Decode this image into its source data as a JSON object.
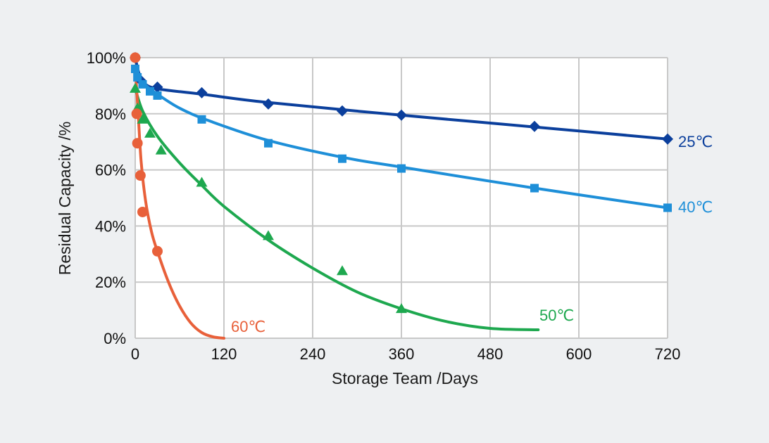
{
  "chart_data": {
    "type": "scatter",
    "xlabel": "Storage Team /Days",
    "ylabel": "Residual Capacity /%",
    "xlim": [
      0,
      720
    ],
    "ylim": [
      0,
      100
    ],
    "x_ticks": [
      "0",
      "120",
      "240",
      "360",
      "480",
      "600",
      "720"
    ],
    "y_ticks": [
      "0%",
      "20%",
      "40%",
      "60%",
      "80%",
      "100%"
    ],
    "grid": true,
    "series": [
      {
        "name": "25℃",
        "color": "#0b3f9c",
        "marker": "diamond",
        "points": [
          [
            0,
            100
          ],
          [
            7,
            92
          ],
          [
            30,
            89.5
          ],
          [
            90,
            87.5
          ],
          [
            180,
            83.5
          ],
          [
            280,
            81
          ],
          [
            360,
            79.5
          ],
          [
            540,
            75.5
          ],
          [
            720,
            71
          ]
        ],
        "fit": [
          [
            0,
            100
          ],
          [
            5,
            94.5
          ],
          [
            10,
            91.5
          ],
          [
            20,
            89.6
          ],
          [
            40,
            88.5
          ],
          [
            90,
            87
          ],
          [
            180,
            84
          ],
          [
            360,
            79.5
          ],
          [
            540,
            75.3
          ],
          [
            720,
            71
          ]
        ]
      },
      {
        "name": "40℃",
        "color": "#1e8fd8",
        "marker": "square",
        "points": [
          [
            0,
            96
          ],
          [
            3,
            93
          ],
          [
            10,
            90.5
          ],
          [
            20,
            88
          ],
          [
            30,
            86.5
          ],
          [
            90,
            78
          ],
          [
            180,
            69.5
          ],
          [
            280,
            64
          ],
          [
            360,
            60.5
          ],
          [
            540,
            53.5
          ],
          [
            720,
            46.5
          ]
        ],
        "fit": [
          [
            0,
            97
          ],
          [
            5,
            93.5
          ],
          [
            15,
            90
          ],
          [
            30,
            87
          ],
          [
            60,
            82
          ],
          [
            100,
            77.5
          ],
          [
            180,
            70.5
          ],
          [
            280,
            64.5
          ],
          [
            360,
            61
          ],
          [
            540,
            53.5
          ],
          [
            720,
            46.5
          ]
        ]
      },
      {
        "name": "50℃",
        "color": "#1ea84f",
        "marker": "triangle",
        "points": [
          [
            0,
            89
          ],
          [
            3,
            82
          ],
          [
            10,
            78
          ],
          [
            20,
            73
          ],
          [
            35,
            67
          ],
          [
            90,
            55.5
          ],
          [
            180,
            36.5
          ],
          [
            280,
            24
          ],
          [
            360,
            10.5
          ]
        ],
        "fit": [
          [
            0,
            89
          ],
          [
            10,
            81
          ],
          [
            30,
            72
          ],
          [
            60,
            62.5
          ],
          [
            90,
            54.5
          ],
          [
            120,
            47
          ],
          [
            180,
            35
          ],
          [
            240,
            25
          ],
          [
            300,
            16.5
          ],
          [
            360,
            10.5
          ],
          [
            420,
            6
          ],
          [
            480,
            3.5
          ],
          [
            545,
            3
          ]
        ]
      },
      {
        "name": "60℃",
        "color": "#e8603a",
        "marker": "circle",
        "points": [
          [
            0,
            100
          ],
          [
            2,
            80
          ],
          [
            3,
            69.5
          ],
          [
            7,
            58
          ],
          [
            10,
            45
          ],
          [
            30,
            31
          ]
        ],
        "fit": [
          [
            0,
            97
          ],
          [
            4,
            80
          ],
          [
            8,
            63
          ],
          [
            14,
            49
          ],
          [
            22,
            38
          ],
          [
            30,
            31
          ],
          [
            45,
            20
          ],
          [
            60,
            11.5
          ],
          [
            75,
            5.5
          ],
          [
            90,
            2
          ],
          [
            105,
            0.5
          ],
          [
            120,
            0
          ]
        ]
      }
    ]
  }
}
